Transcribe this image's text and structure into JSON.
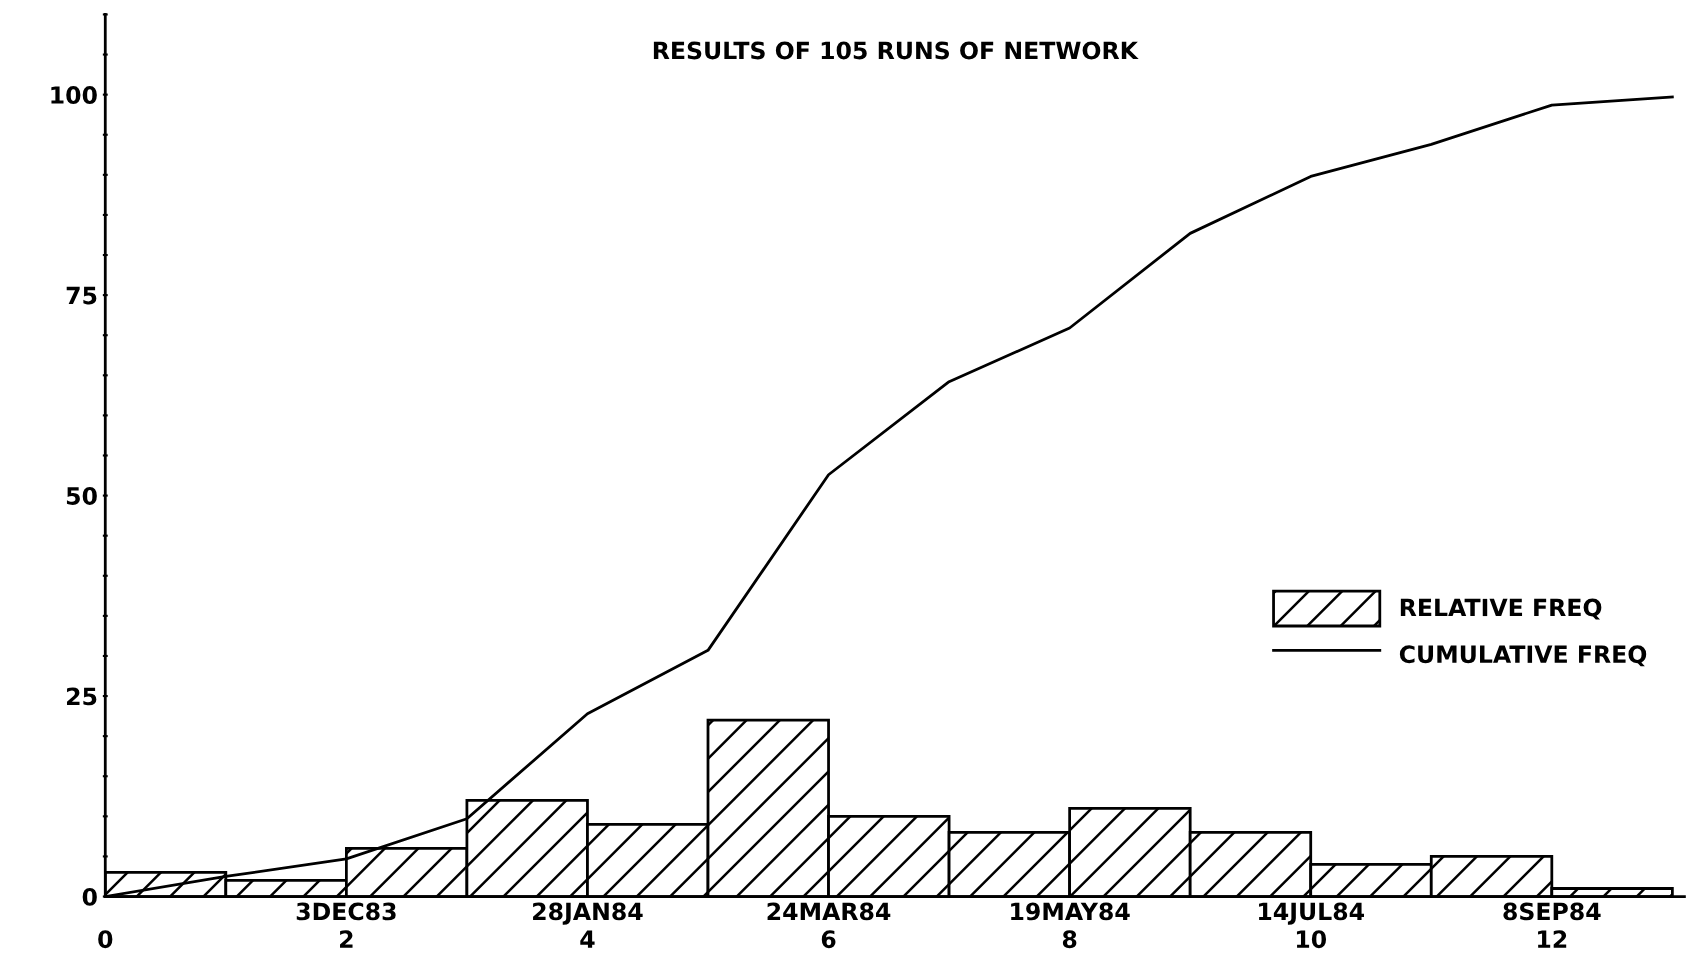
{
  "chart_data": {
    "type": "histogram",
    "title": "RESULTS OF 105 RUNS OF NETWORK",
    "bins": [
      0,
      1,
      2,
      3,
      4,
      5,
      6,
      7,
      8,
      9,
      10,
      11,
      12,
      13
    ],
    "series": [
      {
        "name": "RELATIVE FREQ",
        "color": "#000000",
        "values": [
          3,
          2,
          6,
          12,
          9,
          22,
          10,
          8,
          11,
          8,
          4,
          5,
          1
        ]
      },
      {
        "name": "CUMULATIVE FREQ",
        "type": "line",
        "color": "#000000",
        "x": [
          0,
          1,
          2,
          3,
          4,
          5,
          6,
          7,
          8,
          9,
          10,
          11,
          12,
          13
        ],
        "values": [
          0,
          2.5,
          4.7,
          9.7,
          22.8,
          30.7,
          52.6,
          64.2,
          70.9,
          82.7,
          89.8,
          93.8,
          98.7,
          99.7
        ]
      }
    ],
    "xlim": [
      0,
      13.1
    ],
    "xticks": [
      0,
      2,
      4,
      6,
      8,
      10,
      12
    ],
    "x2lim": [
      "1983-10-08",
      "1984-10-08T19:12"
    ],
    "x2ticks": [
      {
        "value": "1983-12-03",
        "label": "3DEC83"
      },
      {
        "value": "1984-01-28",
        "label": "28JAN84"
      },
      {
        "value": "1984-03-24",
        "label": "24MAR84"
      },
      {
        "value": "1984-05-19",
        "label": "19MAY84"
      },
      {
        "value": "1984-07-14",
        "label": "14JUL84"
      },
      {
        "value": "1984-09-08",
        "label": "8SEP84"
      }
    ],
    "ylim": [
      0,
      110
    ],
    "yticks": [
      0,
      {
        "value": 5,
        "label": null
      },
      {
        "value": 10,
        "label": null
      },
      {
        "value": 15,
        "label": null
      },
      {
        "value": 20,
        "label": null
      },
      25,
      {
        "value": 30,
        "label": null
      },
      {
        "value": 35,
        "label": null
      },
      {
        "value": 40,
        "label": null
      },
      {
        "value": 45,
        "label": null
      },
      50,
      {
        "value": 55,
        "label": null
      },
      {
        "value": 60,
        "label": null
      },
      {
        "value": 65,
        "label": null
      },
      {
        "value": 70,
        "label": null
      },
      75,
      {
        "value": 80,
        "label": null
      },
      {
        "value": 85,
        "label": null
      },
      {
        "value": 90,
        "label": null
      },
      {
        "value": 95,
        "label": null
      },
      100,
      {
        "value": 105,
        "label": null
      },
      {
        "value": 110,
        "label": null
      }
    ],
    "legend": "right",
    "grid": false
  }
}
